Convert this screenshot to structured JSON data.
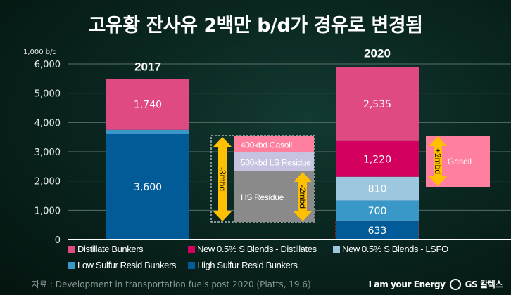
{
  "title": "고유황 잔사유 2백만 b/d가 경유로 변경됨",
  "chart_data": {
    "type": "bar",
    "stacked": true,
    "categories": [
      "2017",
      "2020"
    ],
    "ylabel": "1,000 b/d",
    "ylim": [
      0,
      6000
    ],
    "yticks": [
      "0",
      "1,000",
      "2,000",
      "3,000",
      "4,000",
      "5,000",
      "6,000"
    ],
    "grid": true,
    "legend_position": "bottom",
    "series": [
      {
        "name": "High Sulfur Resid Bunkers",
        "color": "#005b98",
        "values": [
          3600,
          633
        ],
        "labels": [
          "3,600",
          "633"
        ]
      },
      {
        "name": "Low Sulfur Resid Bunkers",
        "color": "#3a98c8",
        "values": [
          150,
          700
        ],
        "labels": [
          null,
          "700"
        ]
      },
      {
        "name": "New 0.5% S Blends - LSFO",
        "color": "#9dc6df",
        "values": [
          0,
          810
        ],
        "labels": [
          null,
          "810"
        ]
      },
      {
        "name": "New 0.5% S Blends - Distillates",
        "color": "#d4005f",
        "values": [
          0,
          1220
        ],
        "labels": [
          null,
          "1,220"
        ]
      },
      {
        "name": "Distillate Bunkers",
        "color": "#e04a82",
        "values": [
          1740,
          2535
        ],
        "labels": [
          "1,740",
          "2,535"
        ]
      }
    ],
    "legend_order": [
      "Distillate Bunkers",
      "New 0.5% S Blends - Distillates",
      "New 0.5% S Blends - LSFO",
      "Low Sulfur Resid Bunkers",
      "High Sulfur Resid Bunkers"
    ],
    "annotations": {
      "shift_box": {
        "segments": [
          {
            "label": "400kbd Gasoil",
            "color": "#ff7f9f"
          },
          {
            "label": "500kbd LS Residue",
            "color": "#c6c3e0"
          },
          {
            "label": "HS Residue",
            "color": "#8a8a8a"
          }
        ],
        "arrow_total": "-3mbd",
        "arrow_hs": "-2mbd"
      },
      "gasoil_box": {
        "label": "Gasoil",
        "arrow": "+2mbd",
        "color": "#ff7f9f"
      },
      "arrow_color": "#ffc000",
      "highlight_2020_hs_border": "#ff2a2a"
    }
  },
  "source": "자료 : Development in transportation fuels post 2020 (Platts, 19.6)",
  "brand": {
    "slogan": "I am your Energy",
    "logo_text": "GS 칼텍스"
  }
}
